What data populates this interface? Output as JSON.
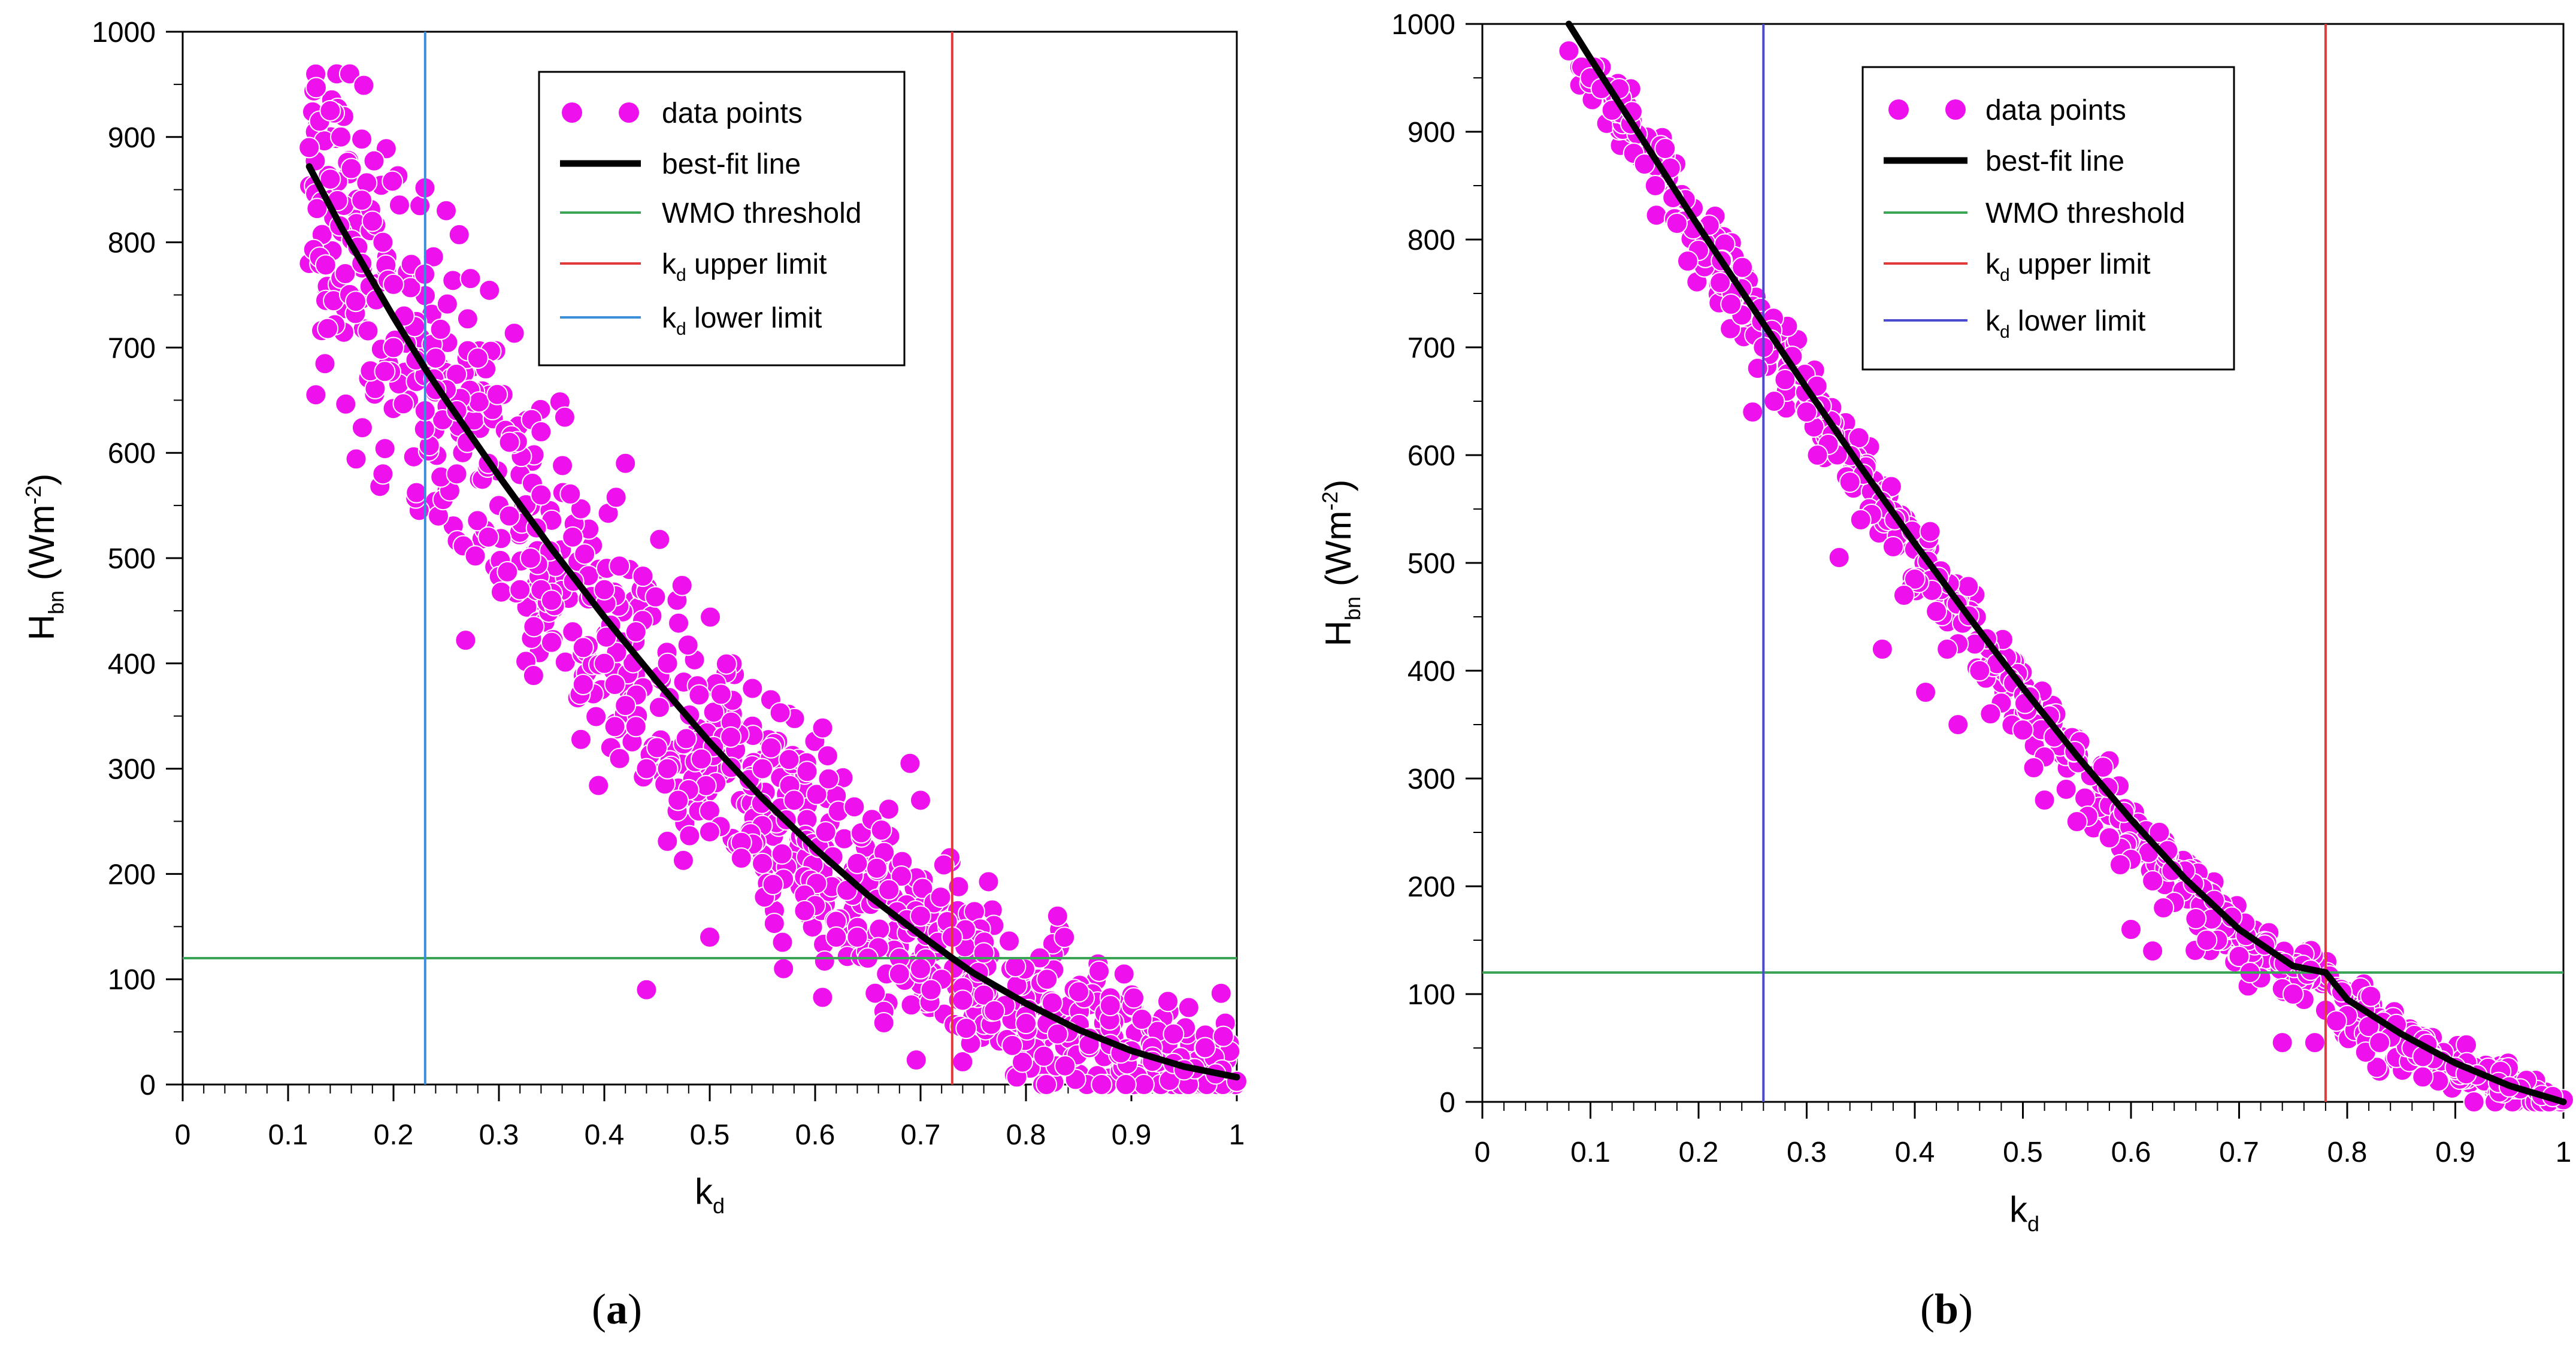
{
  "figure": {
    "panels": [
      "(a)",
      "(b)"
    ],
    "panel_letters": [
      "a",
      "b"
    ],
    "colors": {
      "data_points": "#ee11ee",
      "best_fit": "#000000",
      "wmo": "#3aa655",
      "upper": "#e03a3a",
      "lower_a": "#3b8fd9",
      "lower_b": "#4a4ad0"
    }
  },
  "chart_data": [
    {
      "type": "scatter",
      "panel": "(a)",
      "xlabel": "kd",
      "xlabel_main": "k",
      "xlabel_sub": "d",
      "ylabel": "Hbn (Wm-2)",
      "ylabel_main": "H",
      "ylabel_sub": "bn",
      "ylabel_unit": " (Wm",
      "ylabel_sup": "-2",
      "ylabel_close": ")",
      "xlim": [
        0,
        1
      ],
      "ylim": [
        0,
        1000
      ],
      "xticks": [
        "0",
        "0.1",
        "0.2",
        "0.3",
        "0.4",
        "0.5",
        "0.6",
        "0.7",
        "0.8",
        "0.9",
        "1"
      ],
      "yticks": [
        "0",
        "100",
        "200",
        "300",
        "400",
        "500",
        "600",
        "700",
        "800",
        "900",
        "1000"
      ],
      "legend": [
        "data points",
        "best-fit line",
        "WMO threshold",
        "kd upper limit",
        "kd lower limit"
      ],
      "legend_text": {
        "data_points": "data points",
        "best_fit": "best-fit line",
        "wmo": "WMO threshold",
        "upper_main": "k",
        "upper_sub": "d",
        "upper_rest": " upper limit",
        "lower_main": "k",
        "lower_sub": "d",
        "lower_rest": " lower limit"
      },
      "wmo_threshold": 120,
      "kd_upper_limit": 0.73,
      "kd_lower_limit": 0.23,
      "best_fit": {
        "x": [
          0.12,
          0.15,
          0.2,
          0.23,
          0.25,
          0.3,
          0.35,
          0.4,
          0.45,
          0.5,
          0.55,
          0.6,
          0.65,
          0.7,
          0.73,
          0.75,
          0.8,
          0.85,
          0.9,
          0.95,
          1.0
        ],
        "y": [
          872,
          815,
          729,
          680,
          650,
          578,
          509,
          444,
          383,
          325,
          272,
          224,
          180,
          142,
          120,
          106,
          77,
          52,
          32,
          17,
          7
        ]
      },
      "data_points": {
        "x": [
          0.12,
          0.13,
          0.14,
          0.15,
          0.16,
          0.17,
          0.19,
          0.2,
          0.22,
          0.24,
          0.25,
          0.26,
          0.27,
          0.29,
          0.3,
          0.31,
          0.33,
          0.34,
          0.35,
          0.37,
          0.38,
          0.4,
          0.41,
          0.42,
          0.43,
          0.45,
          0.46,
          0.48,
          0.5,
          0.51,
          0.53,
          0.55,
          0.57,
          0.59,
          0.6,
          0.62,
          0.64,
          0.66,
          0.68,
          0.7,
          0.72,
          0.74,
          0.76,
          0.78,
          0.8,
          0.82,
          0.84,
          0.86,
          0.88,
          0.9,
          0.92,
          0.94,
          0.96,
          0.98,
          1.0,
          0.14,
          0.17,
          0.2,
          0.23,
          0.26,
          0.29,
          0.32,
          0.35,
          0.38,
          0.41,
          0.44,
          0.47,
          0.5,
          0.53,
          0.56,
          0.59,
          0.62,
          0.65,
          0.68,
          0.71,
          0.74,
          0.77,
          0.8,
          0.83,
          0.86,
          0.89,
          0.92,
          0.95,
          0.18,
          0.21,
          0.24,
          0.28,
          0.31,
          0.34,
          0.37,
          0.4,
          0.43,
          0.46,
          0.49,
          0.52,
          0.55,
          0.58,
          0.61,
          0.64,
          0.67,
          0.7,
          0.73,
          0.76,
          0.79,
          0.82,
          0.85,
          0.88,
          0.91,
          0.94,
          0.97,
          0.25,
          0.42,
          0.19,
          0.69,
          0.7,
          0.83,
          0.5,
          0.57,
          0.44,
          0.34
        ],
        "y": [
          890,
          915,
          925,
          900,
          870,
          840,
          800,
          760,
          720,
          690,
          660,
          640,
          610,
          590,
          550,
          540,
          500,
          470,
          460,
          430,
          415,
          400,
          380,
          360,
          340,
          320,
          300,
          280,
          260,
          245,
          230,
          210,
          195,
          180,
          170,
          155,
          140,
          130,
          120,
          110,
          100,
          92,
          85,
          75,
          65,
          58,
          50,
          44,
          38,
          32,
          26,
          20,
          15,
          10,
          3,
          860,
          780,
          700,
          640,
          580,
          520,
          470,
          420,
          380,
          340,
          300,
          270,
          240,
          215,
          190,
          165,
          140,
          120,
          105,
          90,
          80,
          70,
          58,
          48,
          38,
          30,
          22,
          14,
          820,
          730,
          660,
          690,
          610,
          560,
          520,
          470,
          430,
          400,
          370,
          330,
          300,
          270,
          240,
          210,
          185,
          160,
          140,
          125,
          112,
          100,
          88,
          75,
          62,
          48,
          35,
          830,
          590,
          580,
          305,
          270,
          160,
          140,
          110,
          90,
          620
        ]
      }
    },
    {
      "type": "scatter",
      "panel": "(b)",
      "xlabel": "kd",
      "xlabel_main": "k",
      "xlabel_sub": "d",
      "ylabel": "Hbn (Wm-2)",
      "ylabel_main": "H",
      "ylabel_sub": "bn",
      "ylabel_unit": " (Wm",
      "ylabel_sup": "-2",
      "ylabel_close": ")",
      "xlim": [
        0,
        1
      ],
      "ylim": [
        0,
        1000
      ],
      "xticks": [
        "0",
        "0.1",
        "0.2",
        "0.3",
        "0.4",
        "0.5",
        "0.6",
        "0.7",
        "0.8",
        "0.9",
        "1"
      ],
      "yticks": [
        "0",
        "100",
        "200",
        "300",
        "400",
        "500",
        "600",
        "700",
        "800",
        "900",
        "1000"
      ],
      "legend": [
        "data points",
        "best-fit line",
        "WMO threshold",
        "kd upper limit",
        "kd lower limit"
      ],
      "legend_text": {
        "data_points": "data points",
        "best_fit": "best-fit line",
        "wmo": "WMO threshold",
        "upper_main": "k",
        "upper_sub": "d",
        "upper_rest": " upper limit",
        "lower_main": "k",
        "lower_sub": "d",
        "lower_rest": " lower limit"
      },
      "wmo_threshold": 120,
      "kd_upper_limit": 0.78,
      "kd_lower_limit": 0.26,
      "best_fit": {
        "x": [
          0.08,
          0.1,
          0.15,
          0.2,
          0.26,
          0.3,
          0.35,
          0.4,
          0.45,
          0.5,
          0.55,
          0.6,
          0.65,
          0.7,
          0.75,
          0.78,
          0.8,
          0.85,
          0.9,
          0.95,
          1.0
        ],
        "y": [
          1000,
          968,
          890,
          812,
          722,
          662,
          589,
          518,
          450,
          384,
          321,
          262,
          207,
          160,
          126,
          120,
          95,
          63,
          36,
          15,
          0
        ]
      },
      "data_points": {
        "x": [
          0.08,
          0.1,
          0.12,
          0.14,
          0.16,
          0.18,
          0.2,
          0.22,
          0.24,
          0.26,
          0.28,
          0.3,
          0.32,
          0.34,
          0.36,
          0.38,
          0.4,
          0.42,
          0.44,
          0.46,
          0.48,
          0.5,
          0.52,
          0.54,
          0.56,
          0.58,
          0.6,
          0.62,
          0.64,
          0.66,
          0.68,
          0.7,
          0.72,
          0.74,
          0.76,
          0.78,
          0.8,
          0.82,
          0.84,
          0.86,
          0.88,
          0.9,
          0.92,
          0.94,
          0.96,
          0.98,
          1.0,
          0.11,
          0.15,
          0.19,
          0.23,
          0.27,
          0.31,
          0.35,
          0.39,
          0.43,
          0.47,
          0.51,
          0.55,
          0.59,
          0.63,
          0.67,
          0.71,
          0.75,
          0.79,
          0.83,
          0.87,
          0.91,
          0.95,
          0.99,
          0.25,
          0.37,
          0.41,
          0.44,
          0.6,
          0.62,
          0.74,
          0.77,
          0.33,
          0.52
        ],
        "y": [
          975,
          950,
          920,
          880,
          850,
          815,
          790,
          760,
          730,
          700,
          670,
          640,
          610,
          575,
          545,
          515,
          485,
          455,
          425,
          400,
          370,
          345,
          320,
          290,
          265,
          245,
          225,
          205,
          185,
          170,
          150,
          135,
          115,
          105,
          95,
          85,
          80,
          70,
          60,
          50,
          40,
          32,
          25,
          18,
          12,
          6,
          2,
          940,
          870,
          780,
          740,
          650,
          600,
          540,
          470,
          420,
          360,
          310,
          260,
          220,
          180,
          150,
          120,
          100,
          75,
          55,
          42,
          26,
          14,
          5,
          640,
          420,
          380,
          350,
          160,
          140,
          55,
          55,
          505,
          280
        ]
      }
    }
  ]
}
